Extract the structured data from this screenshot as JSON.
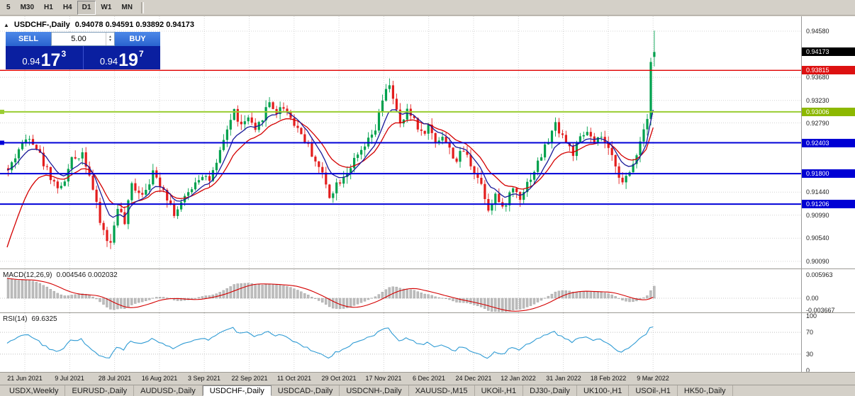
{
  "colors": {
    "up": "#00a14e",
    "down": "#e31d1d",
    "ma_fast": "#1a1a99",
    "ma_slow": "#d40000",
    "line_red": "#e00000",
    "line_green": "#9acd32",
    "line_blue": "#0000d8",
    "grid": "#d4d4d4",
    "macd_bar": "#bdbdbd",
    "macd_signal": "#d40000",
    "rsi_line": "#2f9bd4"
  },
  "toolbar": {
    "timeframes": [
      {
        "label": "5",
        "active": false
      },
      {
        "label": "M30",
        "active": false
      },
      {
        "label": "H1",
        "active": false
      },
      {
        "label": "H4",
        "active": false
      },
      {
        "label": "D1",
        "active": true
      },
      {
        "label": "W1",
        "active": false
      },
      {
        "label": "MN",
        "active": false
      }
    ]
  },
  "chart_header": {
    "collapse_icon": "▲",
    "symbol": "USDCHF-,Daily",
    "ohlc": "0.94078 0.94591 0.93892 0.94173"
  },
  "trade_panel": {
    "sell_label": "SELL",
    "buy_label": "BUY",
    "volume": "5.00",
    "sell_base": "0.94",
    "sell_big": "17",
    "sell_sup": "3",
    "buy_base": "0.94",
    "buy_big": "19",
    "buy_sup": "7"
  },
  "price_scale": {
    "labels": [
      {
        "text": "0.94580",
        "price": 0.9458,
        "style": "plain"
      },
      {
        "text": "0.94173",
        "price": 0.94173,
        "style": "current"
      },
      {
        "text": "0.93815",
        "price": 0.93815,
        "style": "red"
      },
      {
        "text": "0.93680",
        "price": 0.9368,
        "style": "plain"
      },
      {
        "text": "0.93230",
        "price": 0.9323,
        "style": "plain"
      },
      {
        "text": "0.93006",
        "price": 0.93006,
        "style": "green"
      },
      {
        "text": "0.92790",
        "price": 0.9279,
        "style": "plain"
      },
      {
        "text": "0.92403",
        "price": 0.92403,
        "style": "blue"
      },
      {
        "text": "0.91800",
        "price": 0.918,
        "style": "blue"
      },
      {
        "text": "0.91440",
        "price": 0.9144,
        "style": "plain"
      },
      {
        "text": "0.91206",
        "price": 0.91206,
        "style": "blue"
      },
      {
        "text": "0.90990",
        "price": 0.9099,
        "style": "plain"
      },
      {
        "text": "0.90540",
        "price": 0.9054,
        "style": "plain"
      },
      {
        "text": "0.90090",
        "price": 0.9009,
        "style": "plain"
      }
    ]
  },
  "macd_panel": {
    "label": "MACD(12,26,9)",
    "values": "0.004546 0.002032",
    "scale": [
      {
        "text": "0.005963",
        "y": 8
      },
      {
        "text": "0.00",
        "y": 41
      },
      {
        "text": "-0.003667",
        "y": 58
      }
    ]
  },
  "rsi_panel": {
    "label": "RSI(14)",
    "value": "69.6325",
    "scale": [
      {
        "text": "100",
        "v": 100
      },
      {
        "text": "70",
        "v": 70
      },
      {
        "text": "30",
        "v": 30
      },
      {
        "text": "0",
        "v": 0
      }
    ]
  },
  "time_axis": [
    "21 Jun 2021",
    "9 Jul 2021",
    "28 Jul 2021",
    "16 Aug 2021",
    "3 Sep 2021",
    "22 Sep 2021",
    "11 Oct 2021",
    "29 Oct 2021",
    "17 Nov 2021",
    "6 Dec 2021",
    "24 Dec 2021",
    "12 Jan 2022",
    "31 Jan 2022",
    "18 Feb 2022",
    "9 Mar 2022"
  ],
  "tabs": [
    {
      "label": "USDX,Weekly",
      "active": false
    },
    {
      "label": "EURUSD-,Daily",
      "active": false
    },
    {
      "label": "AUDUSD-,Daily",
      "active": false
    },
    {
      "label": "USDCHF-,Daily",
      "active": true
    },
    {
      "label": "USDCAD-,Daily",
      "active": false
    },
    {
      "label": "USDCNH-,Daily",
      "active": false
    },
    {
      "label": "XAUUSD-,M15",
      "active": false
    },
    {
      "label": "UKOil-,H1",
      "active": false
    },
    {
      "label": "DJ30-,Daily",
      "active": false
    },
    {
      "label": "UK100-,H1",
      "active": false
    },
    {
      "label": "USOil-,H1",
      "active": false
    },
    {
      "label": "HK50-,Daily",
      "active": false
    }
  ],
  "chart_data": {
    "type": "candlestick",
    "symbol": "USDCHF",
    "timeframe": "Daily",
    "visible_range": [
      "21 Jun 2021",
      "9 Mar 2022"
    ],
    "n_candles": 184,
    "price_axis_range": [
      0.8995,
      0.9487
    ],
    "last_candle": {
      "open": 0.94078,
      "high": 0.94591,
      "low": 0.93892,
      "close": 0.94173
    },
    "horizontal_lines": [
      {
        "price": 0.93815,
        "color": "red"
      },
      {
        "price": 0.93006,
        "color": "green"
      },
      {
        "price": 0.92403,
        "color": "blue"
      },
      {
        "price": 0.918,
        "color": "blue"
      },
      {
        "price": 0.91206,
        "color": "blue"
      }
    ],
    "indicators": [
      {
        "name": "MACD",
        "params": [
          12,
          26,
          9
        ],
        "last_main": 0.004546,
        "last_signal": 0.002032
      },
      {
        "name": "RSI",
        "params": [
          14
        ],
        "last_value": 69.6325
      }
    ],
    "close_anchors": [
      [
        0,
        0.9185
      ],
      [
        3,
        0.9228
      ],
      [
        6,
        0.9256
      ],
      [
        8,
        0.9232
      ],
      [
        10,
        0.92
      ],
      [
        13,
        0.9163
      ],
      [
        15,
        0.915
      ],
      [
        18,
        0.9205
      ],
      [
        21,
        0.9222
      ],
      [
        23,
        0.918
      ],
      [
        26,
        0.9085
      ],
      [
        28,
        0.9052
      ],
      [
        29,
        0.9042
      ],
      [
        31,
        0.9118
      ],
      [
        33,
        0.9082
      ],
      [
        35,
        0.9158
      ],
      [
        38,
        0.9142
      ],
      [
        41,
        0.918
      ],
      [
        44,
        0.9152
      ],
      [
        47,
        0.9103
      ],
      [
        50,
        0.913
      ],
      [
        53,
        0.9166
      ],
      [
        55,
        0.918
      ],
      [
        57,
        0.9168
      ],
      [
        59,
        0.9195
      ],
      [
        62,
        0.9268
      ],
      [
        64,
        0.9302
      ],
      [
        66,
        0.9272
      ],
      [
        68,
        0.9288
      ],
      [
        70,
        0.9258
      ],
      [
        72,
        0.9292
      ],
      [
        74,
        0.932
      ],
      [
        76,
        0.93
      ],
      [
        78,
        0.9312
      ],
      [
        80,
        0.929
      ],
      [
        83,
        0.9258
      ],
      [
        86,
        0.922
      ],
      [
        89,
        0.9178
      ],
      [
        91,
        0.9138
      ],
      [
        93,
        0.916
      ],
      [
        96,
        0.9186
      ],
      [
        99,
        0.9212
      ],
      [
        102,
        0.9242
      ],
      [
        104,
        0.9266
      ],
      [
        106,
        0.9322
      ],
      [
        108,
        0.9356
      ],
      [
        109,
        0.933
      ],
      [
        111,
        0.9272
      ],
      [
        113,
        0.93
      ],
      [
        115,
        0.9288
      ],
      [
        117,
        0.9258
      ],
      [
        119,
        0.9272
      ],
      [
        121,
        0.9242
      ],
      [
        123,
        0.9256
      ],
      [
        125,
        0.9226
      ],
      [
        127,
        0.9206
      ],
      [
        129,
        0.9226
      ],
      [
        132,
        0.9186
      ],
      [
        134,
        0.916
      ],
      [
        136,
        0.9113
      ],
      [
        138,
        0.914
      ],
      [
        140,
        0.9108
      ],
      [
        141,
        0.9126
      ],
      [
        143,
        0.9152
      ],
      [
        145,
        0.9136
      ],
      [
        147,
        0.9162
      ],
      [
        149,
        0.9186
      ],
      [
        151,
        0.9216
      ],
      [
        153,
        0.9246
      ],
      [
        155,
        0.9276
      ],
      [
        157,
        0.9256
      ],
      [
        158,
        0.924
      ],
      [
        160,
        0.922
      ],
      [
        162,
        0.9246
      ],
      [
        164,
        0.9262
      ],
      [
        166,
        0.9236
      ],
      [
        168,
        0.9252
      ],
      [
        170,
        0.9222
      ],
      [
        172,
        0.92
      ],
      [
        174,
        0.916
      ],
      [
        176,
        0.918
      ],
      [
        178,
        0.9222
      ],
      [
        180,
        0.9268
      ],
      [
        181,
        0.9295
      ],
      [
        182,
        0.9402
      ],
      [
        183,
        0.94173
      ]
    ]
  }
}
